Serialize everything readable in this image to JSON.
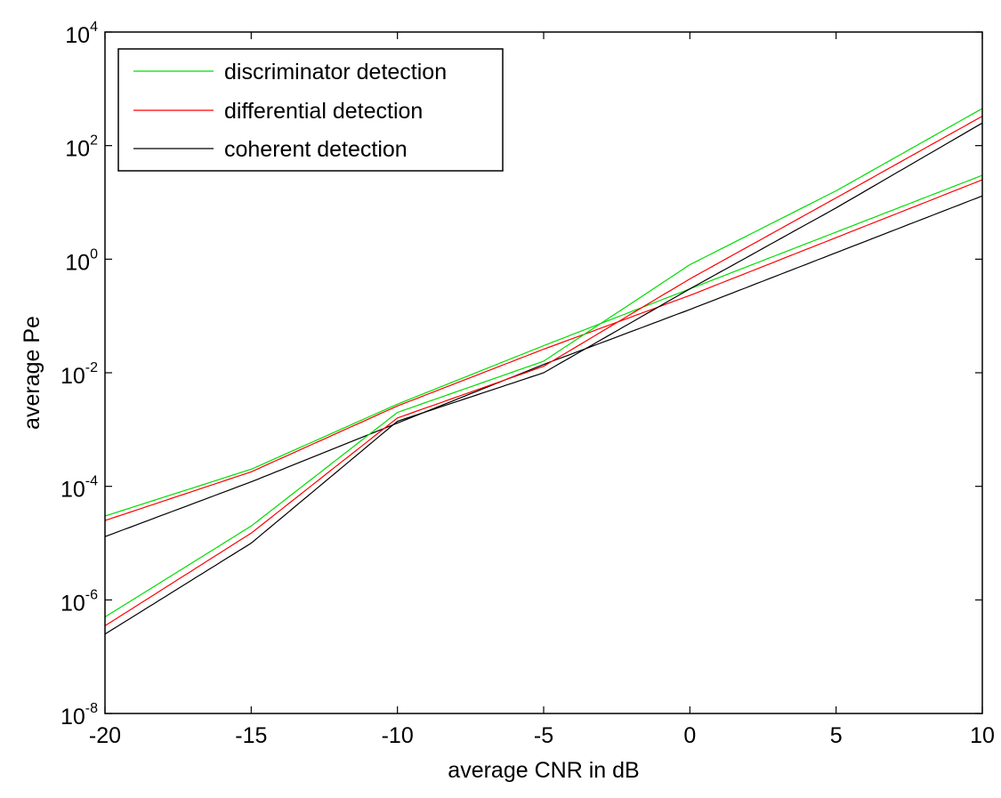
{
  "chart_data": {
    "type": "line",
    "title": "",
    "xlabel": "average CNR in dB",
    "ylabel": "average Pe",
    "xlim": [
      -20,
      10
    ],
    "ylim": [
      1e-08,
      10000.0
    ],
    "yscale": "log",
    "xticks": [
      -20,
      -15,
      -10,
      -5,
      0,
      5,
      10
    ],
    "xtick_labels": [
      "-20",
      "-15",
      "-10",
      "-5",
      "0",
      "5",
      "10"
    ],
    "yticks": [
      {
        "value": 1e-08,
        "base": "10",
        "exp": "-8"
      },
      {
        "value": 1e-06,
        "base": "10",
        "exp": "-6"
      },
      {
        "value": 0.0001,
        "base": "10",
        "exp": "-4"
      },
      {
        "value": 0.01,
        "base": "10",
        "exp": "-2"
      },
      {
        "value": 1,
        "base": "10",
        "exp": "0"
      },
      {
        "value": 100.0,
        "base": "10",
        "exp": "2"
      },
      {
        "value": 10000.0,
        "base": "10",
        "exp": "4"
      }
    ],
    "grid": false,
    "legend": {
      "position": "top-left",
      "entries": [
        {
          "label": "discriminator detection",
          "color": "#00dd00"
        },
        {
          "label": "differential detection",
          "color": "#ff0000"
        },
        {
          "label": "coherent detection",
          "color": "#000000"
        }
      ]
    },
    "x": [
      -20,
      -15,
      -10,
      -5,
      0,
      5,
      10
    ],
    "series": [
      {
        "name": "discriminator detection",
        "group": "shallow",
        "color": "#00dd00",
        "y": [
          3e-05,
          0.0002,
          0.0028,
          0.03,
          0.3,
          3.0,
          30
        ]
      },
      {
        "name": "differential detection",
        "group": "shallow",
        "color": "#ff0000",
        "y": [
          2.5e-05,
          0.00018,
          0.0026,
          0.026,
          0.23,
          2.4,
          25
        ]
      },
      {
        "name": "coherent detection",
        "group": "shallow",
        "color": "#000000",
        "y": [
          1.3e-05,
          0.00012,
          0.0013,
          0.014,
          0.13,
          1.3,
          13
        ]
      },
      {
        "name": "discriminator detection",
        "group": "steep",
        "color": "#00dd00",
        "y": [
          5e-07,
          2e-05,
          0.002,
          0.016,
          0.8,
          16.0,
          450
        ]
      },
      {
        "name": "differential detection",
        "group": "steep",
        "color": "#ff0000",
        "y": [
          3.5e-07,
          1.5e-05,
          0.0016,
          0.013,
          0.45,
          12.0,
          330
        ]
      },
      {
        "name": "coherent detection",
        "group": "steep",
        "color": "#000000",
        "y": [
          2.5e-07,
          1e-05,
          0.0014,
          0.01,
          0.3,
          8.0,
          250
        ]
      }
    ]
  }
}
